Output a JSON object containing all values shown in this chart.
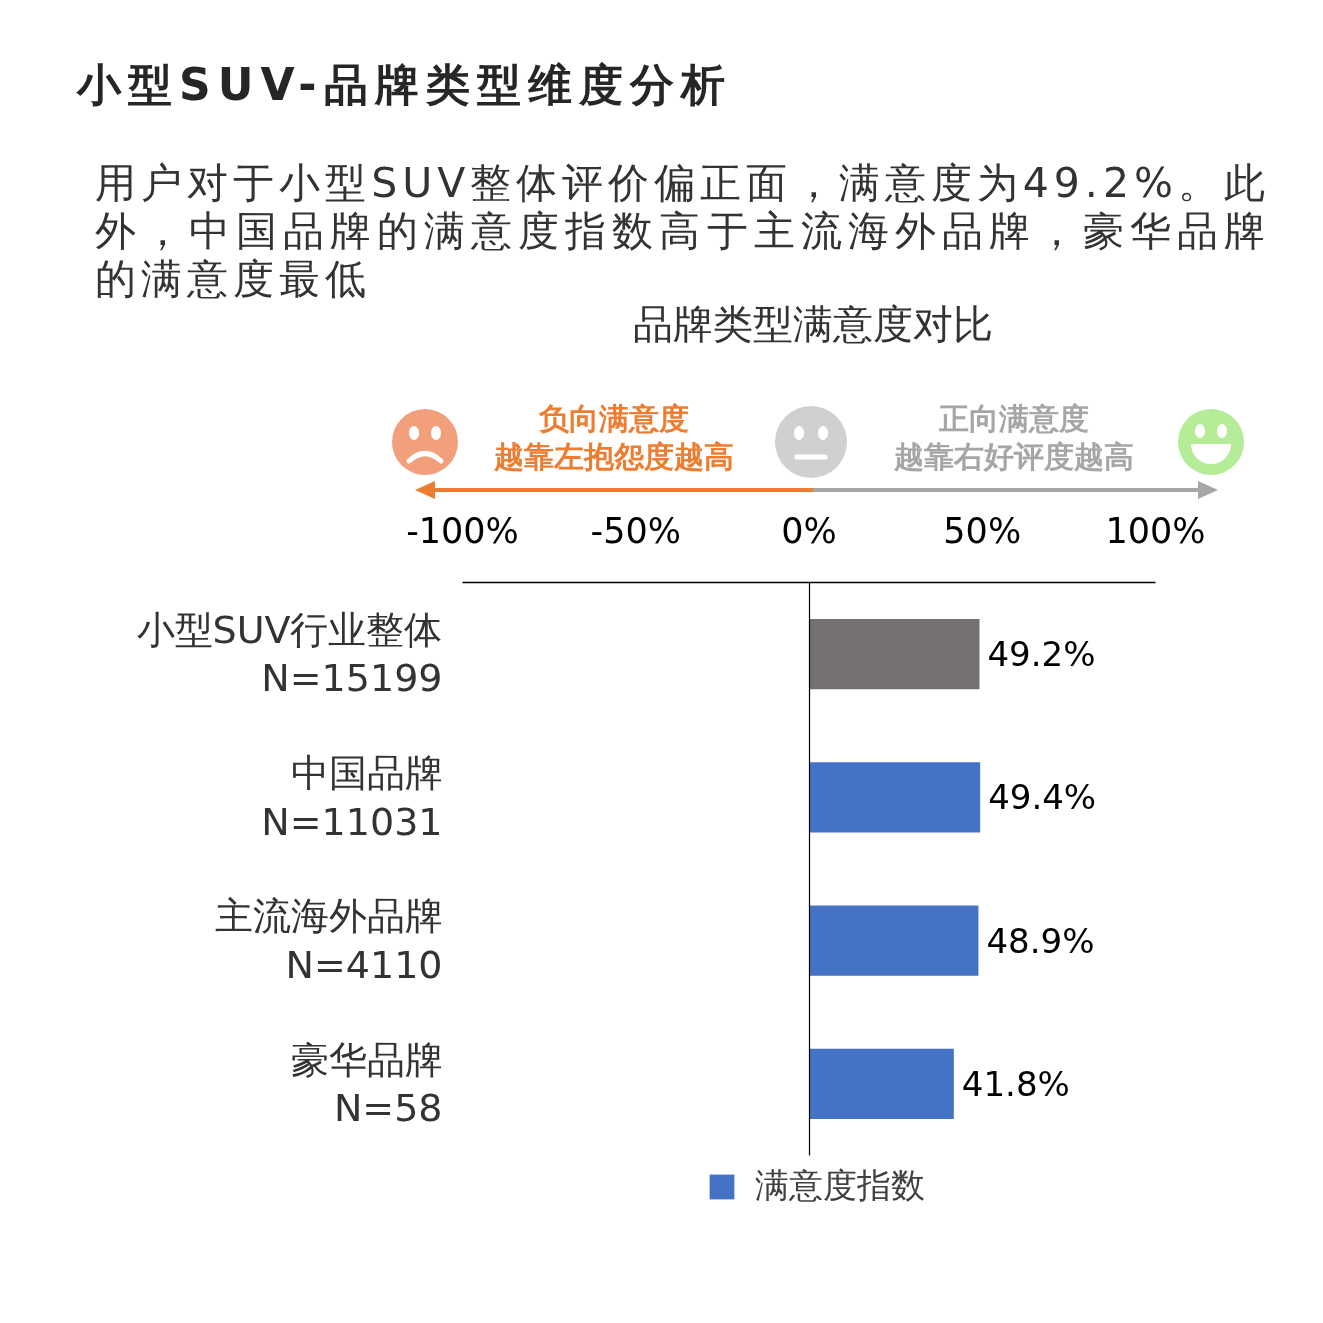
{
  "chart_data": {
    "type": "bar",
    "orientation": "horizontal",
    "title": "小型SUV-品牌类型维度分析",
    "subtitle": "用户对于小型SUV整体评价偏正面，满意度为49.2%。此外，中国品牌的满意度指数高于主流海外品牌，豪华品牌的满意度最低",
    "annotations": [
      "品牌类型满意度对比",
      "负向满意度",
      "越靠左抱怨度越高",
      "正向满意度",
      "越靠右好评度越高"
    ],
    "categories": [
      "小型SUV行业整体\nN=15199",
      "中国品牌\nN=11031",
      "主流海外品牌\nN=4110",
      "豪华品牌\nN=58"
    ],
    "series": [
      {
        "name": "满意度指数",
        "color": "#4472c4",
        "colors": [
          "#767171",
          "#4472c4",
          "#4472c4",
          "#4472c4"
        ],
        "values": [
          49.2,
          49.4,
          48.9,
          41.8
        ],
        "value_labels": [
          "49.2%",
          "49.4%",
          "48.9%",
          "41.8%"
        ]
      }
    ],
    "xlim": [
      -100,
      100
    ],
    "xticks": [
      {
        "value": -100,
        "label": "-100%"
      },
      {
        "value": -50,
        "label": "-50%"
      },
      {
        "value": 0,
        "label": "0%"
      },
      {
        "value": 50,
        "label": "50%"
      },
      {
        "value": 100,
        "label": "100%"
      }
    ],
    "legend": "bottom"
  }
}
